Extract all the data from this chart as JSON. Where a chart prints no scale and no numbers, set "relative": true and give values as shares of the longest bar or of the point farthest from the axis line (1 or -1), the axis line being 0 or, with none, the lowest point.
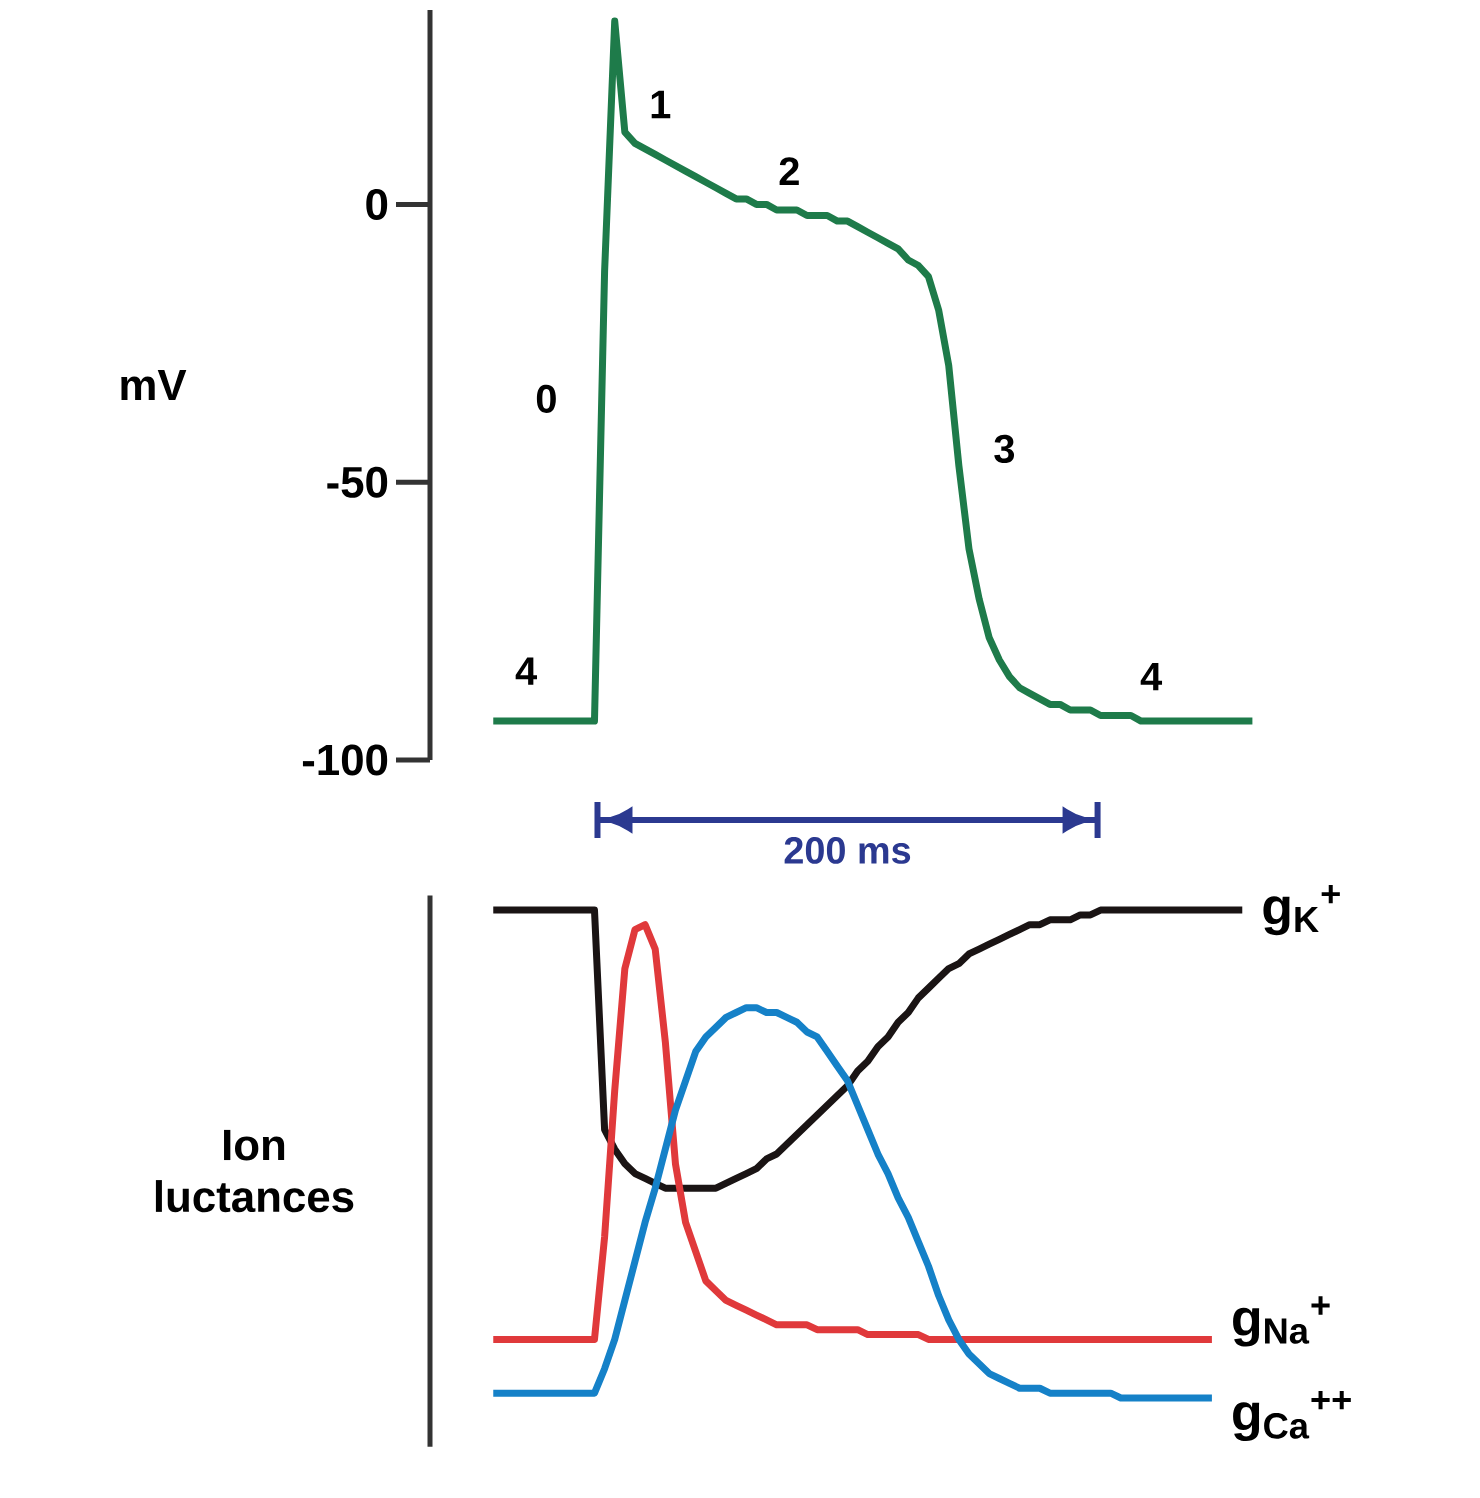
{
  "chart_data": [
    {
      "type": "line",
      "ylabel": "mV",
      "ylim": [
        -100,
        35
      ],
      "yticks": [
        -100,
        -50,
        0
      ],
      "tick_labels": "y",
      "categories": [
        null,
        null,
        null,
        null,
        null,
        null,
        null,
        null,
        null,
        null,
        null,
        null,
        null,
        null,
        null,
        null,
        null,
        null,
        null,
        null,
        null,
        null,
        null,
        null,
        null,
        null,
        null,
        null,
        null,
        null,
        null,
        null,
        null,
        null,
        null,
        null,
        null,
        null,
        null,
        null,
        null,
        null,
        null,
        null,
        null,
        null,
        null,
        null,
        null,
        null,
        null,
        null,
        null,
        null,
        null,
        null,
        null,
        null,
        null,
        null,
        null,
        null,
        null,
        null,
        null,
        null,
        null,
        null,
        null,
        null,
        null,
        null,
        null,
        null,
        null,
        null
      ],
      "series": [
        {
          "color": "#1e7b4a",
          "values": [
            -93,
            -93,
            -93,
            -93,
            -93,
            -93,
            -93,
            -93,
            -93,
            -93,
            -93,
            -12,
            33,
            13,
            11,
            10,
            9,
            8,
            7,
            6,
            5,
            4,
            3,
            2,
            1,
            1,
            0,
            0,
            -1,
            -1,
            -1,
            -2,
            -2,
            -2,
            -3,
            -3,
            -4,
            -5,
            -6,
            -7,
            -8,
            -10,
            -11,
            -13,
            -19,
            -29,
            -47,
            -62,
            -71,
            -78,
            -82,
            -85,
            -87,
            -88,
            -89,
            -90,
            -90,
            -91,
            -91,
            -91,
            -92,
            -92,
            -92,
            -92,
            -93,
            -93,
            -93,
            -93,
            -93,
            -93,
            -93,
            -93,
            -93,
            -93,
            -93,
            -93
          ]
        }
      ],
      "annotations": [
        "0",
        "1",
        "2",
        "3",
        "4",
        "4",
        "200 ms"
      ]
    },
    {
      "type": "line",
      "ylabel": "Ion luctances",
      "relative": true,
      "tick_labels": false,
      "categories": [
        null,
        null,
        null,
        null,
        null,
        null,
        null,
        null,
        null,
        null,
        null,
        null,
        null,
        null,
        null,
        null,
        null,
        null,
        null,
        null,
        null,
        null,
        null,
        null,
        null,
        null,
        null,
        null,
        null,
        null,
        null,
        null,
        null,
        null,
        null,
        null,
        null,
        null,
        null,
        null,
        null,
        null,
        null,
        null,
        null,
        null,
        null,
        null,
        null,
        null,
        null,
        null,
        null,
        null,
        null,
        null,
        null,
        null,
        null,
        null,
        null,
        null,
        null,
        null,
        null,
        null,
        null,
        null,
        null,
        null,
        null,
        null,
        null,
        null,
        null,
        null
      ],
      "series": [
        {
          "name": "g$_{K}$$^{+}$",
          "color": "#1a1414",
          "values": [
            1,
            1,
            1,
            1,
            1,
            1,
            1,
            1,
            1,
            1,
            1,
            0.55,
            0.51,
            0.48,
            0.46,
            0.45,
            0.44,
            0.43,
            0.43,
            0.43,
            0.43,
            0.43,
            0.43,
            0.44,
            0.45,
            0.46,
            0.47,
            0.49,
            0.5,
            0.52,
            0.54,
            0.56,
            0.58,
            0.6,
            0.62,
            0.64,
            0.67,
            0.69,
            0.72,
            0.74,
            0.77,
            0.79,
            0.82,
            0.84,
            0.86,
            0.88,
            0.89,
            0.91,
            0.92,
            0.93,
            0.94,
            0.95,
            0.96,
            0.97,
            0.97,
            0.98,
            0.98,
            0.98,
            0.99,
            0.99,
            1,
            1,
            1,
            1,
            1,
            1,
            1,
            1,
            1,
            1,
            1,
            1,
            1,
            1,
            1,
            null
          ]
        },
        {
          "name": "g$_{Na}$$^{+}$",
          "color": "#e0393b",
          "values": [
            0.12,
            0.12,
            0.12,
            0.12,
            0.12,
            0.12,
            0.12,
            0.12,
            0.12,
            0.12,
            0.12,
            0.33,
            0.63,
            0.88,
            0.96,
            0.97,
            0.92,
            0.73,
            0.48,
            0.36,
            0.3,
            0.24,
            0.22,
            0.2,
            0.19,
            0.18,
            0.17,
            0.16,
            0.15,
            0.15,
            0.15,
            0.15,
            0.14,
            0.14,
            0.14,
            0.14,
            0.14,
            0.13,
            0.13,
            0.13,
            0.13,
            0.13,
            0.13,
            0.12,
            0.12,
            0.12,
            0.12,
            0.12,
            0.12,
            0.12,
            0.12,
            0.12,
            0.12,
            0.12,
            0.12,
            0.12,
            0.12,
            0.12,
            0.12,
            0.12,
            0.12,
            0.12,
            0.12,
            0.12,
            0.12,
            0.12,
            0.12,
            0.12,
            0.12,
            0.12,
            0.12,
            0.12,
            null,
            null,
            null,
            null
          ]
        },
        {
          "name": "g$_{Ca}$$^{++}$",
          "color": "#1581c8",
          "values": [
            0.01,
            0.01,
            0.01,
            0.01,
            0.01,
            0.01,
            0.01,
            0.01,
            0.01,
            0.01,
            0.01,
            0.06,
            0.12,
            0.2,
            0.28,
            0.36,
            0.43,
            0.51,
            0.59,
            0.65,
            0.71,
            0.74,
            0.76,
            0.78,
            0.79,
            0.8,
            0.8,
            0.79,
            0.79,
            0.78,
            0.77,
            0.75,
            0.74,
            0.71,
            0.68,
            0.65,
            0.6,
            0.55,
            0.5,
            0.46,
            0.41,
            0.37,
            0.32,
            0.27,
            0.21,
            0.16,
            0.12,
            0.09,
            0.07,
            0.05,
            0.04,
            0.03,
            0.02,
            0.02,
            0.02,
            0.01,
            0.01,
            0.01,
            0.01,
            0.01,
            0.01,
            0.01,
            0,
            0,
            0,
            0,
            0,
            0,
            0,
            0,
            0,
            0,
            null,
            null,
            null,
            null
          ]
        }
      ]
    }
  ]
}
